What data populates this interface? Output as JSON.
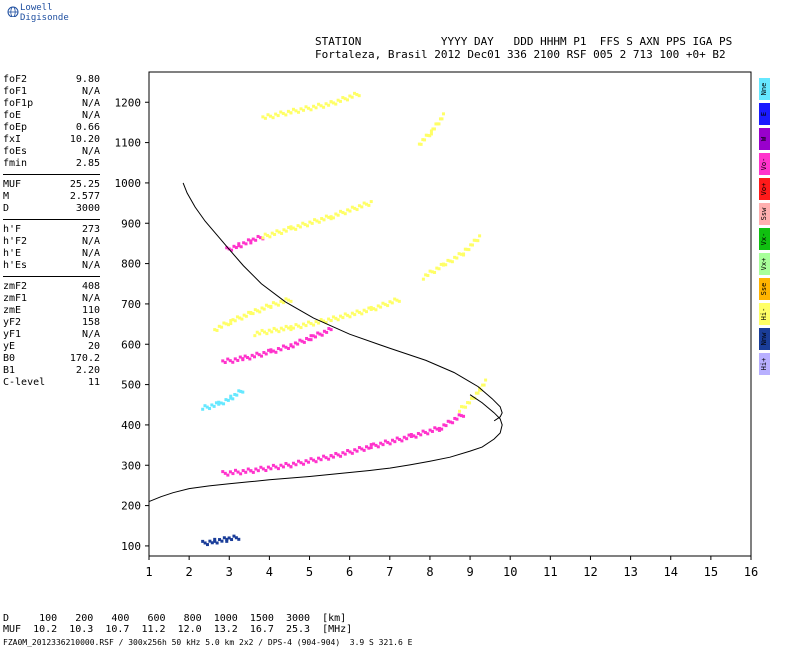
{
  "brand": {
    "name": "Lowell Digisonde",
    "icon": "globe-icon"
  },
  "header": {
    "line1": "STATION            YYYY DAY   DDD HHHM P1  FFS S AXN PPS IGA PS",
    "line2": "Fortaleza, Brasil 2012 Dec01 336 2100 RSF 005 2 713 100 +0+ B2"
  },
  "params": {
    "groups": [
      [
        {
          "label": "foF2",
          "value": "9.80"
        },
        {
          "label": "foF1",
          "value": "N/A"
        },
        {
          "label": "foF1p",
          "value": "N/A"
        },
        {
          "label": "foE",
          "value": "N/A"
        },
        {
          "label": "foEp",
          "value": "0.66"
        },
        {
          "label": "fxI",
          "value": "10.20"
        },
        {
          "label": "foEs",
          "value": "N/A"
        },
        {
          "label": "fmin",
          "value": "2.85"
        }
      ],
      [
        {
          "label": "MUF",
          "value": "25.25"
        },
        {
          "label": "M",
          "value": "2.577"
        },
        {
          "label": "D",
          "value": "3000"
        }
      ],
      [
        {
          "label": "h'F",
          "value": "273"
        },
        {
          "label": "h'F2",
          "value": "N/A"
        },
        {
          "label": "h'E",
          "value": "N/A"
        },
        {
          "label": "h'Es",
          "value": "N/A"
        }
      ],
      [
        {
          "label": "zmF2",
          "value": "408"
        },
        {
          "label": "zmF1",
          "value": "N/A"
        },
        {
          "label": "zmE",
          "value": "110"
        },
        {
          "label": "yF2",
          "value": "158"
        },
        {
          "label": "yF1",
          "value": "N/A"
        },
        {
          "label": "yE",
          "value": "20"
        },
        {
          "label": "B0",
          "value": "170.2"
        },
        {
          "label": "B1",
          "value": "2.20"
        },
        {
          "label": "C-level",
          "value": "11"
        }
      ]
    ]
  },
  "legend": [
    {
      "label": "Nne",
      "color": "#66e8ff"
    },
    {
      "label": "E",
      "color": "#1a1aff"
    },
    {
      "label": "W",
      "color": "#9900cc"
    },
    {
      "label": "Vo-",
      "color": "#ff33cc"
    },
    {
      "label": "Vo+",
      "color": "#ff1a1a"
    },
    {
      "label": "Ssw",
      "color": "#ffb0b0"
    },
    {
      "label": "Vx-",
      "color": "#10c010"
    },
    {
      "label": "Vx+",
      "color": "#a8ff9a"
    },
    {
      "label": "Sse",
      "color": "#ffb400"
    },
    {
      "label": "Hi-",
      "color": "#ffff66"
    },
    {
      "label": "Nnw",
      "color": "#1a3d99"
    },
    {
      "label": "Hi+",
      "color": "#b8b0ff"
    }
  ],
  "bottom": {
    "line1": "D     100   200   400   600   800  1000  1500  3000  [km]",
    "line2": "MUF  10.2  10.3  10.7  11.2  12.0  13.2  16.7  25.3  [MHz]",
    "line3": "FZA0M_2012336210000.RSF / 300x256h 50 kHz 5.0 km 2x2 / DPS-4 (904-904)  3.9 S 321.6 E"
  },
  "chart_data": {
    "type": "scatter",
    "xlim": [
      1,
      16
    ],
    "ylim": [
      75,
      1275
    ],
    "x_ticks": [
      1,
      2,
      3,
      4,
      5,
      6,
      7,
      8,
      9,
      10,
      11,
      12,
      13,
      14,
      15,
      16
    ],
    "y_ticks": [
      100,
      200,
      300,
      400,
      500,
      600,
      700,
      800,
      900,
      1000,
      1100,
      1200
    ],
    "grid": false,
    "profile_line": {
      "x": [
        9.6,
        9.75,
        9.8,
        9.75,
        9.55,
        9.2,
        8.6,
        7.9,
        7.0,
        6.0,
        5.1,
        4.4,
        3.8,
        3.35,
        3.0,
        2.7,
        2.4,
        2.15,
        1.95,
        1.85
      ],
      "y": [
        410,
        420,
        430,
        445,
        465,
        495,
        530,
        560,
        590,
        625,
        665,
        705,
        750,
        795,
        835,
        870,
        905,
        940,
        975,
        1000
      ]
    },
    "fit_line": {
      "x": [
        1.0,
        1.3,
        1.6,
        2.0,
        2.5,
        3.0,
        3.5,
        4.0,
        4.5,
        5.0,
        5.5,
        6.0,
        6.5,
        7.0,
        7.5,
        8.0,
        8.5,
        9.0,
        9.3,
        9.6,
        9.75,
        9.8,
        9.75,
        9.6,
        9.3,
        9.0
      ],
      "y": [
        210,
        222,
        232,
        242,
        249,
        254,
        259,
        264,
        268,
        272,
        277,
        282,
        287,
        293,
        301,
        310,
        320,
        335,
        345,
        365,
        380,
        400,
        415,
        430,
        455,
        475
      ]
    },
    "echo_traces": [
      {
        "color": "#ff33cc",
        "x": [
          2.8,
          3.5,
          4.5,
          5.5,
          6.5,
          7.5,
          8.2,
          8.8
        ],
        "y": [
          283,
          290,
          305,
          325,
          350,
          375,
          395,
          430
        ]
      },
      {
        "color": "#ffff66",
        "x": [
          8.7,
          9.0,
          9.2,
          9.35
        ],
        "y": [
          440,
          465,
          490,
          510
        ]
      },
      {
        "color": "#ff33cc",
        "x": [
          2.8,
          3.3,
          4.0,
          4.5,
          5.0,
          5.5
        ],
        "y": [
          560,
          568,
          585,
          600,
          620,
          640
        ]
      },
      {
        "color": "#ffff66",
        "x": [
          3.6,
          4.5,
          5.5,
          6.5,
          7.2
        ],
        "y": [
          630,
          645,
          665,
          690,
          715
        ]
      },
      {
        "color": "#ffff66",
        "x": [
          2.6,
          3.0,
          3.5,
          4.0,
          4.5
        ],
        "y": [
          640,
          660,
          680,
          700,
          715
        ]
      },
      {
        "color": "#ff33cc",
        "x": [
          2.9,
          3.2,
          3.5,
          3.8
        ],
        "y": [
          838,
          848,
          860,
          870
        ]
      },
      {
        "color": "#ffff66",
        "x": [
          3.8,
          4.5,
          5.5,
          6.5
        ],
        "y": [
          870,
          890,
          920,
          955
        ]
      },
      {
        "color": "#ffff66",
        "x": [
          3.8,
          4.5,
          5.5,
          6.2
        ],
        "y": [
          1165,
          1180,
          1200,
          1225
        ]
      },
      {
        "color": "#ffff66",
        "x": [
          7.8,
          8.3,
          8.8,
          9.2
        ],
        "y": [
          770,
          800,
          830,
          870
        ]
      },
      {
        "color": "#ffff66",
        "x": [
          7.7,
          8.0,
          8.3
        ],
        "y": [
          1100,
          1130,
          1170
        ]
      },
      {
        "color": "#1a3d99",
        "x": [
          2.3,
          2.6,
          2.9,
          3.2
        ],
        "y": [
          110,
          115,
          120,
          125
        ]
      },
      {
        "color": "#66e8ff",
        "x": [
          2.3,
          2.7,
          3.0,
          3.3
        ],
        "y": [
          445,
          455,
          470,
          490
        ]
      }
    ]
  }
}
